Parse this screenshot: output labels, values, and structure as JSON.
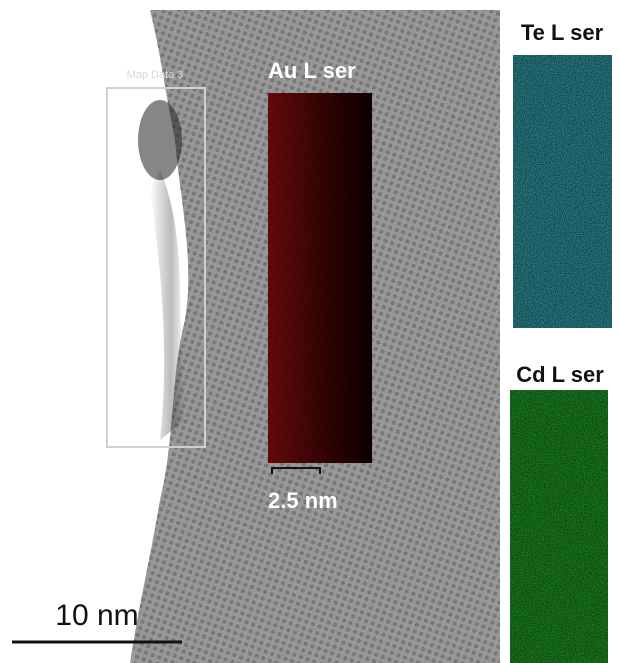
{
  "labels": {
    "map_box": "Map Data 3",
    "au": "Au L ser",
    "au_scale": "2.5 nm",
    "te": "Te L ser",
    "cd": "Cd L ser",
    "main_scale": "10 nm"
  }
}
